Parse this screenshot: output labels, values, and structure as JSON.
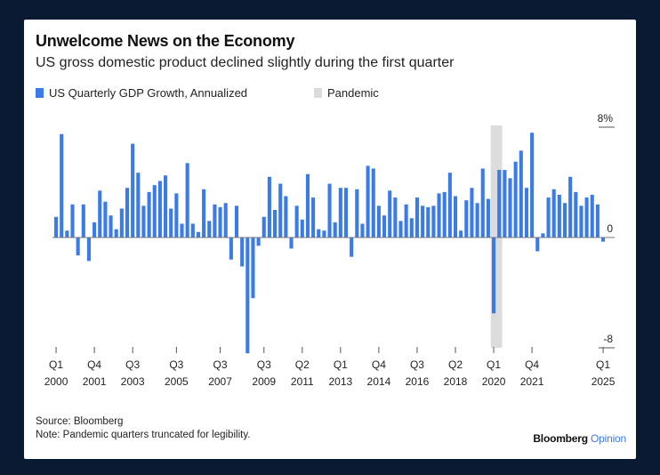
{
  "title": "Unwelcome News on the Economy",
  "subtitle": "US gross domestic product declined slightly during the first quarter",
  "legend": {
    "series_label": "US Quarterly GDP Growth, Annualized",
    "pandemic_label": "Pandemic",
    "series_color": "#3b7be8",
    "pandemic_color": "#dcdcdc"
  },
  "source": "Source: Bloomberg",
  "note": "Note: Pandemic quarters truncated for legibility.",
  "brand": {
    "name": "Bloomberg",
    "accent": "Opinion"
  },
  "chart_data": {
    "type": "bar",
    "first_quarter": "Q1 2000",
    "ylim": [
      -8,
      8
    ],
    "y_ticks": [
      {
        "value": 8,
        "label": "8%"
      },
      {
        "value": 0,
        "label": "0"
      },
      {
        "value": -8,
        "label": "-8"
      }
    ],
    "x_ticks": [
      {
        "q": "Q1",
        "y": "2000",
        "index": 0
      },
      {
        "q": "Q4",
        "y": "2001",
        "index": 7
      },
      {
        "q": "Q3",
        "y": "2003",
        "index": 14
      },
      {
        "q": "Q3",
        "y": "2005",
        "index": 22
      },
      {
        "q": "Q3",
        "y": "2007",
        "index": 30
      },
      {
        "q": "Q3",
        "y": "2009",
        "index": 38
      },
      {
        "q": "Q2",
        "y": "2011",
        "index": 45
      },
      {
        "q": "Q1",
        "y": "2013",
        "index": 52
      },
      {
        "q": "Q4",
        "y": "2014",
        "index": 59
      },
      {
        "q": "Q3",
        "y": "2016",
        "index": 66
      },
      {
        "q": "Q2",
        "y": "2018",
        "index": 73
      },
      {
        "q": "Q1",
        "y": "2020",
        "index": 80
      },
      {
        "q": "Q4",
        "y": "2021",
        "index": 87
      },
      {
        "q": "Q1",
        "y": "2025",
        "index": 100
      }
    ],
    "pandemic_quarters": [
      80,
      81
    ],
    "values": [
      1.5,
      7.5,
      0.5,
      2.4,
      -1.3,
      2.4,
      -1.7,
      1.1,
      3.4,
      2.6,
      1.6,
      0.6,
      2.1,
      3.6,
      6.8,
      4.7,
      2.3,
      3.3,
      3.8,
      4.1,
      4.5,
      2.1,
      3.2,
      1.0,
      5.4,
      1.0,
      0.4,
      3.5,
      1.2,
      2.4,
      2.2,
      2.5,
      -1.6,
      2.3,
      -2.1,
      -8.4,
      -4.4,
      -0.6,
      1.5,
      4.4,
      2.0,
      3.9,
      3.0,
      -0.8,
      2.3,
      1.3,
      4.6,
      2.9,
      0.6,
      0.5,
      3.9,
      1.1,
      3.6,
      3.6,
      -1.4,
      3.5,
      1.0,
      5.2,
      5.0,
      2.3,
      1.6,
      3.4,
      2.9,
      1.2,
      2.4,
      1.4,
      2.9,
      2.3,
      2.2,
      2.3,
      3.2,
      3.3,
      4.7,
      3.0,
      0.5,
      2.7,
      3.6,
      2.5,
      5.0,
      2.8,
      -5.5,
      4.9,
      4.9,
      4.3,
      5.5,
      6.3,
      3.6,
      7.6,
      -1.0,
      0.3,
      2.9,
      3.5,
      3.1,
      2.5,
      4.4,
      3.3,
      2.3,
      2.9,
      3.1,
      2.4,
      -0.3
    ]
  }
}
